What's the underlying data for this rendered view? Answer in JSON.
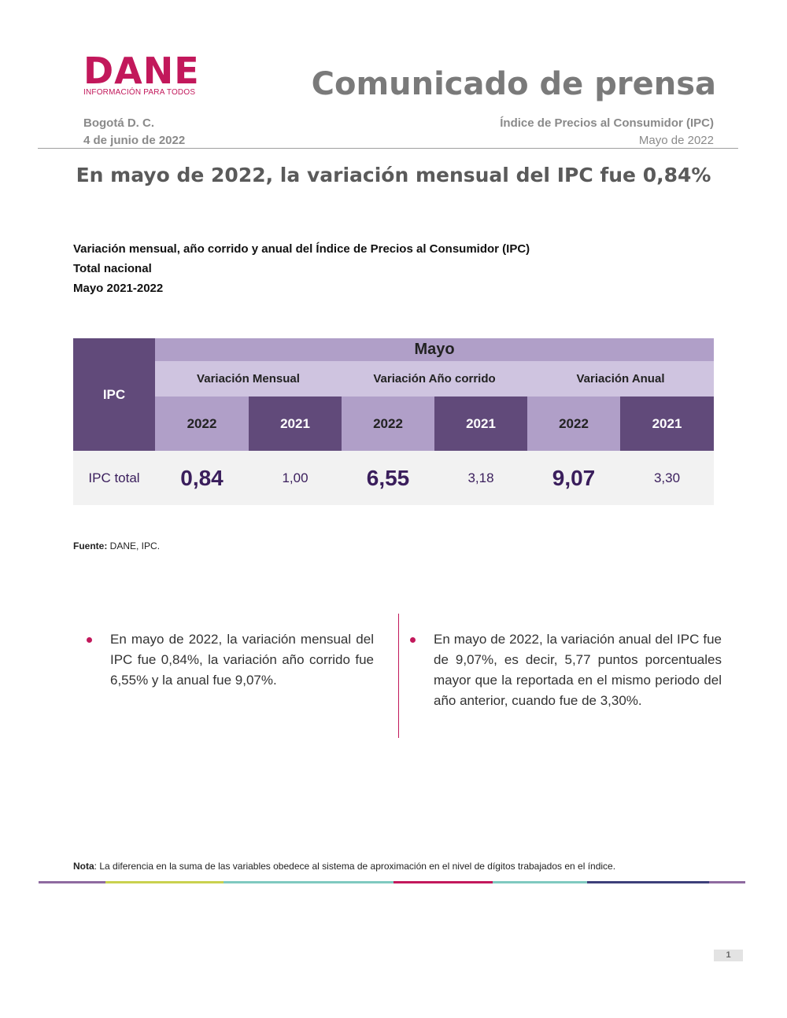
{
  "header": {
    "logo_word": "DANE",
    "logo_tagline": "INFORMACIÓN PARA TODOS",
    "title": "Comunicado de prensa",
    "city": "Bogotá D. C.",
    "date": "4 de junio de 2022",
    "index_name": "Índice de Precios al Consumidor (IPC)",
    "period": "Mayo de 2022"
  },
  "headline": "En mayo de 2022, la variación mensual del IPC fue 0,84%",
  "table_caption": {
    "line1": "Variación mensual, año corrido y anual del Índice de Precios al Consumidor (IPC)",
    "line2": "Total nacional",
    "line3": "Mayo 2021-2022"
  },
  "table": {
    "corner": "IPC",
    "month": "Mayo",
    "groups": [
      "Variación Mensual",
      "Variación Año corrido",
      "Variación Anual"
    ],
    "years": [
      "2022",
      "2021",
      "2022",
      "2021",
      "2022",
      "2021"
    ],
    "row_label": "IPC total",
    "values": [
      "0,84",
      "1,00",
      "6,55",
      "3,18",
      "9,07",
      "3,30"
    ]
  },
  "source": {
    "label": "Fuente:",
    "text": " DANE, IPC."
  },
  "bullets": [
    "En mayo de 2022, la variación mensual del IPC fue 0,84%, la variación año corrido fue 6,55% y la anual fue 9,07%.",
    "En mayo de 2022, la variación anual del IPC fue de 9,07%, es decir, 5,77 puntos porcentuales mayor que la reportada en el mismo periodo del año anterior, cuando fue de 3,30%."
  ],
  "note": {
    "label": "Nota",
    "text": ": La diferencia en la suma de las variables obedece al sistema de aproximación en el nivel de dígitos trabajados en el índice."
  },
  "colors": {
    "brand": "#c2185b",
    "table_dark": "#614a7a",
    "table_mid": "#b09fc8",
    "table_light": "#cfc4e0",
    "value_text": "#3a1e5c",
    "footer_bar": [
      "#8e6aa0",
      "#c9d14e",
      "#7fc9c0",
      "#c2185b",
      "#7fc9c0",
      "#3d3f7a",
      "#8e6aa0"
    ]
  },
  "page_number": "1"
}
